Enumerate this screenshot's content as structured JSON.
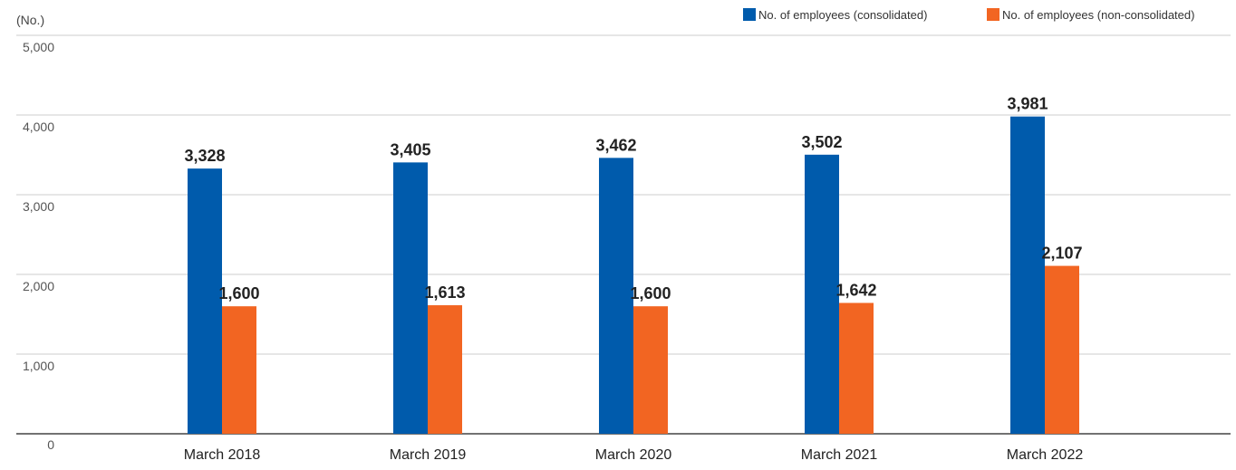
{
  "chart_data": {
    "type": "bar",
    "unit_label": "(No.)",
    "categories": [
      "March 2018",
      "March 2019",
      "March 2020",
      "March 2021",
      "March 2022"
    ],
    "series": [
      {
        "name": "No. of employees (consolidated)",
        "color": "#005BAC",
        "values": [
          3328,
          3405,
          3462,
          3502,
          3981
        ],
        "labels": [
          "3,328",
          "3,405",
          "3,462",
          "3,502",
          "3,981"
        ]
      },
      {
        "name": "No. of employees (non-consolidated)",
        "color": "#F26522",
        "values": [
          1600,
          1613,
          1600,
          1642,
          2107
        ],
        "labels": [
          "1,600",
          "1,613",
          "1,600",
          "1,642",
          "2,107"
        ]
      }
    ],
    "yticks": [
      0,
      1000,
      2000,
      3000,
      4000,
      5000
    ],
    "ytick_labels": [
      "0",
      "1,000",
      "2,000",
      "3,000",
      "4,000",
      "5,000"
    ],
    "ylim": [
      0,
      5000
    ],
    "grid": true,
    "legend_position": "top-right",
    "gridline_color": "#cccccc",
    "axis_color": "#444444"
  }
}
